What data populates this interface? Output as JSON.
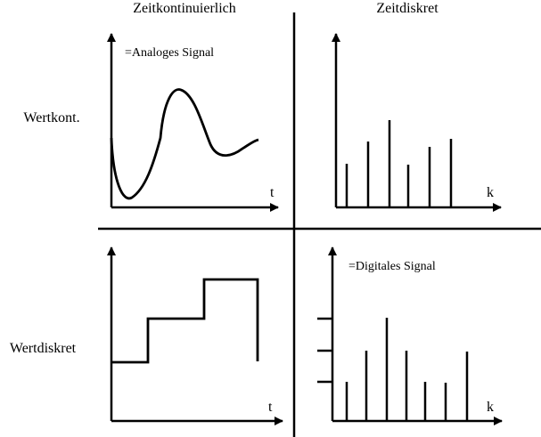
{
  "columns": {
    "continuous": "Zeitkontinuierlich",
    "discrete": "Zeitdiskret"
  },
  "rows": {
    "value_continuous": "Wertkont.",
    "value_discrete": "Wertdiskret"
  },
  "panels": {
    "top_left": {
      "caption": "=Analoges Signal",
      "x_axis": "t"
    },
    "top_right": {
      "caption": "",
      "x_axis": "k"
    },
    "bottom_left": {
      "caption": "",
      "x_axis": "t"
    },
    "bottom_right": {
      "caption": "=Digitales Signal",
      "x_axis": "k"
    }
  },
  "colors": {
    "ink": "#000000",
    "background": "#ffffff"
  }
}
